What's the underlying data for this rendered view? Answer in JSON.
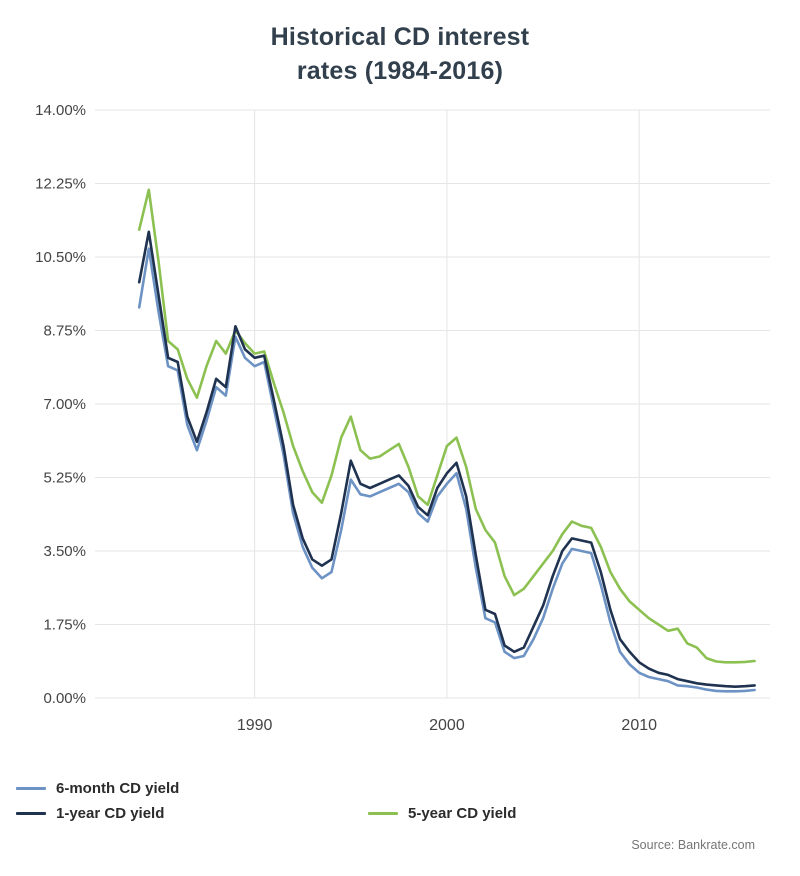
{
  "title": {
    "line1": "Historical CD interest",
    "line2": "rates (1984-2016)"
  },
  "legend": [
    {
      "label": "6-month CD yield",
      "color": "#6d92c4"
    },
    {
      "label": "1-year CD yield",
      "color": "#1f3250"
    },
    {
      "label": "5-year CD yield",
      "color": "#8cc152"
    }
  ],
  "source": "Source: Bankrate.com",
  "chart_data": {
    "type": "line",
    "title": "Historical CD interest rates (1984-2016)",
    "xlabel": "",
    "ylabel": "",
    "ylim": [
      0,
      14
    ],
    "xlim": [
      1981.7,
      2016.8
    ],
    "grid": true,
    "grid_color": "#e6e6e6",
    "legend_position": "bottom",
    "y_ticks": [
      {
        "label": "0.00%",
        "value": 0
      },
      {
        "label": "1.75%",
        "value": 1.75
      },
      {
        "label": "3.50%",
        "value": 3.5
      },
      {
        "label": "5.25%",
        "value": 5.25
      },
      {
        "label": "7.00%",
        "value": 7
      },
      {
        "label": "8.75%",
        "value": 8.75
      },
      {
        "label": "10.50%",
        "value": 10.5
      },
      {
        "label": "12.25%",
        "value": 12.25
      },
      {
        "label": "14.00%",
        "value": 14
      }
    ],
    "x_ticks": [
      {
        "label": "1990",
        "value": 1990
      },
      {
        "label": "2000",
        "value": 2000
      },
      {
        "label": "2010",
        "value": 2010
      }
    ],
    "x": [
      1984,
      1984.5,
      1985,
      1985.5,
      1986,
      1986.5,
      1987,
      1987.5,
      1988,
      1988.5,
      1989,
      1989.5,
      1990,
      1990.5,
      1991,
      1991.5,
      1992,
      1992.5,
      1993,
      1993.5,
      1994,
      1994.5,
      1995,
      1995.5,
      1996,
      1996.5,
      1997,
      1997.5,
      1998,
      1998.5,
      1999,
      1999.5,
      2000,
      2000.5,
      2001,
      2001.5,
      2002,
      2002.5,
      2003,
      2003.5,
      2004,
      2004.5,
      2005,
      2005.5,
      2006,
      2006.5,
      2007,
      2007.5,
      2008,
      2008.5,
      2009,
      2009.5,
      2010,
      2010.5,
      2011,
      2011.5,
      2012,
      2012.5,
      2013,
      2013.5,
      2014,
      2014.5,
      2015,
      2015.5,
      2016
    ],
    "series": [
      {
        "name": "6-month CD yield",
        "color": "#6d92c4",
        "values": [
          9.3,
          10.7,
          9.2,
          7.9,
          7.8,
          6.5,
          5.9,
          6.6,
          7.4,
          7.2,
          8.6,
          8.1,
          7.9,
          8.0,
          6.9,
          5.8,
          4.4,
          3.6,
          3.1,
          2.85,
          3.0,
          4.0,
          5.2,
          4.85,
          4.8,
          4.9,
          5.0,
          5.1,
          4.9,
          4.4,
          4.2,
          4.8,
          5.1,
          5.35,
          4.5,
          3.1,
          1.9,
          1.8,
          1.1,
          0.95,
          1.0,
          1.4,
          1.9,
          2.6,
          3.2,
          3.55,
          3.5,
          3.45,
          2.7,
          1.8,
          1.1,
          0.8,
          0.6,
          0.5,
          0.45,
          0.4,
          0.3,
          0.28,
          0.25,
          0.2,
          0.17,
          0.16,
          0.16,
          0.17,
          0.19
        ]
      },
      {
        "name": "1-year CD yield",
        "color": "#1f3250",
        "values": [
          9.9,
          11.1,
          9.6,
          8.1,
          8.0,
          6.7,
          6.1,
          6.8,
          7.6,
          7.4,
          8.85,
          8.3,
          8.1,
          8.15,
          7.1,
          6.0,
          4.6,
          3.8,
          3.3,
          3.15,
          3.3,
          4.4,
          5.65,
          5.1,
          5.0,
          5.1,
          5.2,
          5.3,
          5.05,
          4.55,
          4.35,
          5.0,
          5.35,
          5.6,
          4.8,
          3.4,
          2.1,
          2.0,
          1.25,
          1.1,
          1.2,
          1.7,
          2.2,
          2.9,
          3.5,
          3.8,
          3.75,
          3.7,
          3.0,
          2.1,
          1.4,
          1.1,
          0.85,
          0.7,
          0.6,
          0.55,
          0.45,
          0.4,
          0.35,
          0.32,
          0.3,
          0.28,
          0.27,
          0.28,
          0.3
        ]
      },
      {
        "name": "5-year CD yield",
        "color": "#8cc152",
        "values": [
          11.15,
          12.1,
          10.4,
          8.5,
          8.3,
          7.6,
          7.15,
          7.9,
          8.5,
          8.2,
          8.75,
          8.45,
          8.2,
          8.25,
          7.5,
          6.8,
          6.0,
          5.4,
          4.9,
          4.65,
          5.3,
          6.2,
          6.7,
          5.9,
          5.7,
          5.75,
          5.9,
          6.05,
          5.5,
          4.8,
          4.6,
          5.3,
          6.0,
          6.2,
          5.5,
          4.5,
          4.0,
          3.7,
          2.9,
          2.45,
          2.6,
          2.9,
          3.2,
          3.5,
          3.9,
          4.2,
          4.1,
          4.05,
          3.6,
          3.0,
          2.6,
          2.3,
          2.1,
          1.9,
          1.75,
          1.6,
          1.65,
          1.3,
          1.2,
          0.95,
          0.87,
          0.85,
          0.85,
          0.86,
          0.88
        ]
      }
    ]
  }
}
